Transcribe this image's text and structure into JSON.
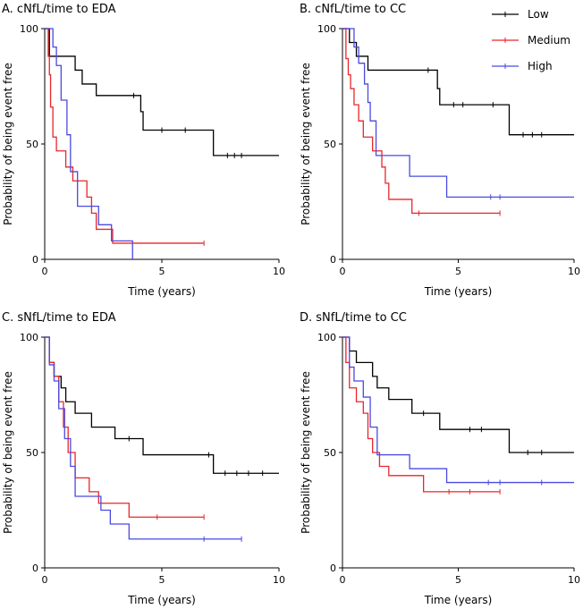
{
  "legend": [
    {
      "name": "Low",
      "color": "#000000"
    },
    {
      "name": "Medium",
      "color": "#e8262b"
    },
    {
      "name": "High",
      "color": "#4a4ae0"
    }
  ],
  "chart_data": [
    {
      "type": "line",
      "title": "A. cNfL/time to EDA",
      "xlabel": "Time (years)",
      "ylabel": "Probability of being event free",
      "xlim": [
        0,
        10
      ],
      "ylim": [
        0,
        100
      ],
      "xticks": [
        0,
        5,
        10
      ],
      "yticks": [
        0,
        50,
        100
      ],
      "series": [
        {
          "name": "Low",
          "steps": [
            [
              0,
              100
            ],
            [
              0.2,
              88
            ],
            [
              1.0,
              88
            ],
            [
              1.3,
              82
            ],
            [
              1.6,
              76
            ],
            [
              2.2,
              71
            ],
            [
              4.1,
              64
            ],
            [
              4.2,
              56
            ],
            [
              7.2,
              45
            ],
            [
              10,
              45
            ]
          ],
          "censor": [
            [
              3.8,
              71
            ],
            [
              5.0,
              56
            ],
            [
              6.0,
              56
            ],
            [
              7.8,
              45
            ],
            [
              8.1,
              45
            ],
            [
              8.4,
              45
            ]
          ]
        },
        {
          "name": "Medium",
          "steps": [
            [
              0,
              100
            ],
            [
              0.15,
              88
            ],
            [
              0.2,
              80
            ],
            [
              0.25,
              66
            ],
            [
              0.35,
              53
            ],
            [
              0.5,
              47
            ],
            [
              0.9,
              40
            ],
            [
              1.2,
              34
            ],
            [
              1.8,
              27
            ],
            [
              2.0,
              20
            ],
            [
              2.2,
              13
            ],
            [
              2.9,
              7
            ],
            [
              6.8,
              7
            ]
          ],
          "censor": [
            [
              6.8,
              7
            ]
          ]
        },
        {
          "name": "High",
          "steps": [
            [
              0,
              100
            ],
            [
              0.35,
              92
            ],
            [
              0.5,
              84
            ],
            [
              0.7,
              69
            ],
            [
              0.95,
              54
            ],
            [
              1.1,
              38
            ],
            [
              1.4,
              23
            ],
            [
              2.0,
              23
            ],
            [
              2.3,
              15
            ],
            [
              2.85,
              8
            ],
            [
              3.75,
              0
            ]
          ],
          "censor": []
        }
      ]
    },
    {
      "type": "line",
      "title": "B. cNfL/time to CC",
      "xlabel": "Time (years)",
      "ylabel": "Probability of being event free",
      "xlim": [
        0,
        10
      ],
      "ylim": [
        0,
        100
      ],
      "xticks": [
        0,
        5,
        10
      ],
      "yticks": [
        0,
        50,
        100
      ],
      "series": [
        {
          "name": "Low",
          "steps": [
            [
              0,
              100
            ],
            [
              0.3,
              94
            ],
            [
              0.6,
              88
            ],
            [
              1.1,
              82
            ],
            [
              4.1,
              74
            ],
            [
              4.2,
              67
            ],
            [
              7.2,
              54
            ],
            [
              10,
              54
            ]
          ],
          "censor": [
            [
              3.7,
              82
            ],
            [
              4.8,
              67
            ],
            [
              5.2,
              67
            ],
            [
              6.5,
              67
            ],
            [
              7.8,
              54
            ],
            [
              8.2,
              54
            ],
            [
              8.6,
              54
            ]
          ]
        },
        {
          "name": "Medium",
          "steps": [
            [
              0,
              100
            ],
            [
              0.15,
              87
            ],
            [
              0.25,
              80
            ],
            [
              0.35,
              74
            ],
            [
              0.5,
              67
            ],
            [
              0.7,
              60
            ],
            [
              0.9,
              53
            ],
            [
              1.3,
              47
            ],
            [
              1.7,
              40
            ],
            [
              1.85,
              33
            ],
            [
              2.0,
              26
            ],
            [
              3.0,
              20
            ],
            [
              6.8,
              20
            ]
          ],
          "censor": [
            [
              3.3,
              20
            ],
            [
              6.8,
              20
            ]
          ]
        },
        {
          "name": "High",
          "steps": [
            [
              0,
              100
            ],
            [
              0.5,
              92
            ],
            [
              0.7,
              85
            ],
            [
              0.95,
              76
            ],
            [
              1.1,
              68
            ],
            [
              1.2,
              60
            ],
            [
              1.45,
              45
            ],
            [
              2.9,
              36
            ],
            [
              4.5,
              27
            ],
            [
              10,
              27
            ]
          ],
          "censor": [
            [
              6.4,
              27
            ],
            [
              6.8,
              27
            ]
          ]
        }
      ]
    },
    {
      "type": "line",
      "title": "C. sNfL/time to EDA",
      "xlabel": "Time (years)",
      "ylabel": "Probability of being event free",
      "xlim": [
        0,
        10
      ],
      "ylim": [
        0,
        100
      ],
      "xticks": [
        0,
        5,
        10
      ],
      "yticks": [
        0,
        50,
        100
      ],
      "series": [
        {
          "name": "Low",
          "steps": [
            [
              0,
              100
            ],
            [
              0.2,
              89
            ],
            [
              0.4,
              83
            ],
            [
              0.7,
              78
            ],
            [
              0.9,
              72
            ],
            [
              1.3,
              67
            ],
            [
              2.0,
              61
            ],
            [
              3.0,
              56
            ],
            [
              4.2,
              49
            ],
            [
              7.2,
              41
            ],
            [
              10,
              41
            ]
          ],
          "censor": [
            [
              3.6,
              56
            ],
            [
              7.0,
              49
            ],
            [
              7.7,
              41
            ],
            [
              8.2,
              41
            ],
            [
              8.7,
              41
            ],
            [
              9.3,
              41
            ]
          ]
        },
        {
          "name": "Medium",
          "steps": [
            [
              0,
              100
            ],
            [
              0.2,
              89
            ],
            [
              0.4,
              83
            ],
            [
              0.6,
              72
            ],
            [
              0.8,
              61
            ],
            [
              1.0,
              50
            ],
            [
              1.3,
              39
            ],
            [
              1.9,
              33
            ],
            [
              2.3,
              28
            ],
            [
              3.6,
              22
            ],
            [
              6.8,
              22
            ]
          ],
          "censor": [
            [
              4.8,
              22
            ],
            [
              6.8,
              22
            ]
          ]
        },
        {
          "name": "High",
          "steps": [
            [
              0,
              100
            ],
            [
              0.2,
              88
            ],
            [
              0.4,
              81
            ],
            [
              0.6,
              69
            ],
            [
              0.85,
              56
            ],
            [
              1.1,
              44
            ],
            [
              1.3,
              31
            ],
            [
              2.4,
              25
            ],
            [
              2.8,
              19
            ],
            [
              3.6,
              12.5
            ],
            [
              8.4,
              12.5
            ]
          ],
          "censor": [
            [
              6.8,
              12.5
            ],
            [
              8.4,
              12.5
            ]
          ]
        }
      ]
    },
    {
      "type": "line",
      "title": "D. sNfL/time to CC",
      "xlabel": "Time (years)",
      "ylabel": "Probability of being event free",
      "xlim": [
        0,
        10
      ],
      "ylim": [
        0,
        100
      ],
      "xticks": [
        0,
        5,
        10
      ],
      "yticks": [
        0,
        50,
        100
      ],
      "series": [
        {
          "name": "Low",
          "steps": [
            [
              0,
              100
            ],
            [
              0.3,
              94
            ],
            [
              0.6,
              89
            ],
            [
              1.3,
              83
            ],
            [
              1.5,
              78
            ],
            [
              2.0,
              73
            ],
            [
              3.0,
              67
            ],
            [
              4.2,
              60
            ],
            [
              7.2,
              50
            ],
            [
              10,
              50
            ]
          ],
          "censor": [
            [
              3.5,
              67
            ],
            [
              5.5,
              60
            ],
            [
              6.0,
              60
            ],
            [
              8.0,
              50
            ],
            [
              8.6,
              50
            ]
          ]
        },
        {
          "name": "Medium",
          "steps": [
            [
              0,
              100
            ],
            [
              0.15,
              89
            ],
            [
              0.3,
              78
            ],
            [
              0.6,
              72
            ],
            [
              0.9,
              67
            ],
            [
              1.1,
              56
            ],
            [
              1.3,
              50
            ],
            [
              1.6,
              44
            ],
            [
              2.0,
              40
            ],
            [
              3.5,
              33
            ],
            [
              6.8,
              33
            ]
          ],
          "censor": [
            [
              4.6,
              33
            ],
            [
              5.5,
              33
            ],
            [
              6.8,
              33
            ]
          ]
        },
        {
          "name": "High",
          "steps": [
            [
              0,
              100
            ],
            [
              0.3,
              87
            ],
            [
              0.5,
              81
            ],
            [
              0.9,
              74
            ],
            [
              1.2,
              61
            ],
            [
              1.5,
              49
            ],
            [
              2.9,
              43
            ],
            [
              4.5,
              37
            ],
            [
              10,
              37
            ]
          ],
          "censor": [
            [
              6.3,
              37
            ],
            [
              6.8,
              37
            ],
            [
              8.6,
              37
            ]
          ]
        }
      ]
    }
  ]
}
